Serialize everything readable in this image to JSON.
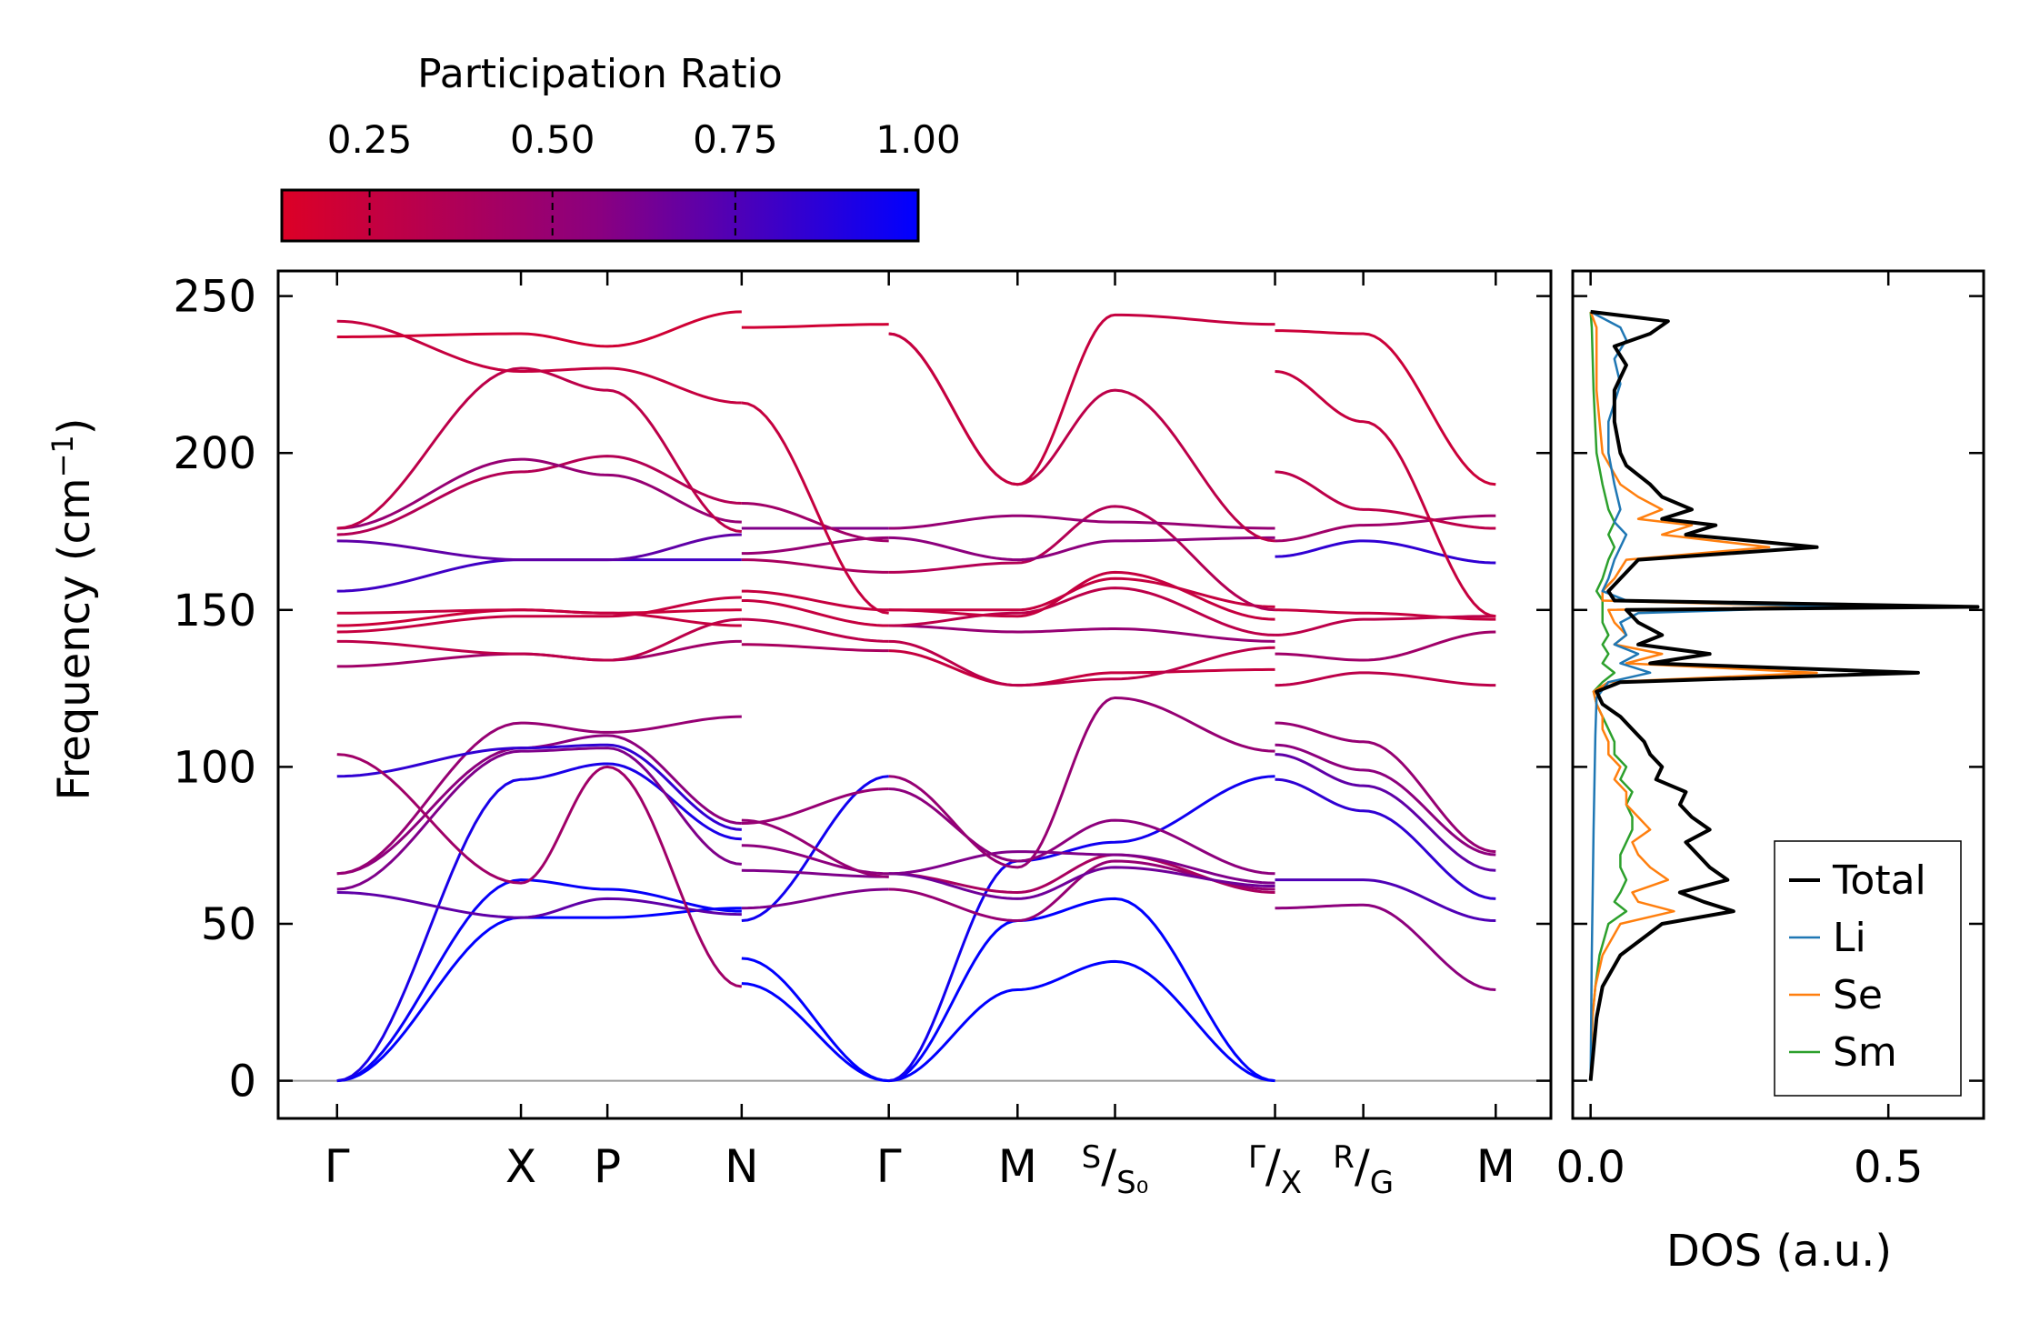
{
  "chart_data": [
    {
      "type": "line",
      "name": "phonon_dispersion",
      "ylabel": "Frequency (cm⁻¹)",
      "ylim": [
        -12,
        258
      ],
      "yticks": [
        0,
        50,
        100,
        150,
        200,
        250
      ],
      "ytick_labels": [
        "0",
        "50",
        "100",
        "150",
        "200",
        "250"
      ],
      "high_symmetry_points": [
        {
          "label": "Γ",
          "pos": 0.0
        },
        {
          "label": "X",
          "pos": 1.0
        },
        {
          "label": "P",
          "pos": 1.47
        },
        {
          "label": "N",
          "pos": 2.2
        },
        {
          "label": "Γ",
          "pos": 3.0
        },
        {
          "label": "M",
          "pos": 3.7
        },
        {
          "label": "S/S₀",
          "pos": 4.23,
          "sup": "S",
          "sub": "S₀"
        },
        {
          "label": "Γ/X",
          "pos": 5.1,
          "sup": "Γ",
          "sub": "X"
        },
        {
          "label": "R/G",
          "pos": 5.58,
          "sup": "R",
          "sub": "G"
        },
        {
          "label": "M",
          "pos": 6.3
        }
      ],
      "x_range": [
        -0.32,
        6.6
      ],
      "segments": [
        {
          "x0": 0.0,
          "x1": 2.2,
          "kpoints": [
            0.0,
            1.0,
            1.47,
            2.2
          ]
        },
        {
          "x0": 2.2,
          "x1": 3.0,
          "kpoints": [
            2.2,
            3.0
          ]
        },
        {
          "x0": 3.0,
          "x1": 5.1,
          "kpoints": [
            3.0,
            3.7,
            4.23,
            5.1
          ]
        },
        {
          "x0": 5.1,
          "x1": 6.3,
          "kpoints": [
            5.1,
            5.58,
            6.3
          ]
        }
      ],
      "bands_segment1": [
        {
          "y": [
            0,
            52,
            52,
            55
          ],
          "pr": 1.0
        },
        {
          "y": [
            0,
            64,
            61,
            54
          ],
          "pr": 0.98
        },
        {
          "y": [
            0,
            96,
            101,
            77
          ],
          "pr": 0.92
        },
        {
          "y": [
            60,
            52,
            58,
            53
          ],
          "pr": 0.7
        },
        {
          "y": [
            61,
            105,
            106,
            69
          ],
          "pr": 0.6
        },
        {
          "y": [
            66,
            106,
            110,
            82
          ],
          "pr": 0.55
        },
        {
          "y": [
            66,
            114,
            111,
            116
          ],
          "pr": 0.5
        },
        {
          "y": [
            97,
            106,
            107,
            80
          ],
          "pr": 0.85
        },
        {
          "y": [
            104,
            63,
            100,
            30
          ],
          "pr": 0.45
        },
        {
          "y": [
            132,
            136,
            134,
            140
          ],
          "pr": 0.45
        },
        {
          "y": [
            140,
            136,
            134,
            147
          ],
          "pr": 0.3
        },
        {
          "y": [
            143,
            148,
            148,
            154
          ],
          "pr": 0.25
        },
        {
          "y": [
            145,
            150,
            149,
            150
          ],
          "pr": 0.22
        },
        {
          "y": [
            149,
            150,
            149,
            145
          ],
          "pr": 0.25
        },
        {
          "y": [
            156,
            166,
            166,
            166
          ],
          "pr": 0.8
        },
        {
          "y": [
            172,
            166,
            166,
            174
          ],
          "pr": 0.7
        },
        {
          "y": [
            174,
            194,
            199,
            184
          ],
          "pr": 0.35
        },
        {
          "y": [
            176,
            198,
            193,
            178
          ],
          "pr": 0.5
        },
        {
          "y": [
            176,
            227,
            220,
            175
          ],
          "pr": 0.3
        },
        {
          "y": [
            242,
            226,
            227,
            216
          ],
          "pr": 0.25
        },
        {
          "y": [
            237,
            238,
            234,
            245
          ],
          "pr": 0.2
        }
      ],
      "bands_segment2": [
        {
          "y": [
            31,
            0
          ],
          "pr": 1.0
        },
        {
          "y": [
            39,
            0
          ],
          "pr": 1.0
        },
        {
          "y": [
            51,
            97
          ],
          "pr": 0.95
        },
        {
          "y": [
            55,
            61
          ],
          "pr": 0.6
        },
        {
          "y": [
            67,
            65
          ],
          "pr": 0.6
        },
        {
          "y": [
            75,
            66
          ],
          "pr": 0.55
        },
        {
          "y": [
            82,
            93
          ],
          "pr": 0.5
        },
        {
          "y": [
            83,
            65
          ],
          "pr": 0.5
        },
        {
          "y": [
            139,
            137
          ],
          "pr": 0.4
        },
        {
          "y": [
            147,
            140
          ],
          "pr": 0.3
        },
        {
          "y": [
            153,
            145
          ],
          "pr": 0.25
        },
        {
          "y": [
            156,
            150
          ],
          "pr": 0.25
        },
        {
          "y": [
            166,
            162
          ],
          "pr": 0.4
        },
        {
          "y": [
            168,
            173
          ],
          "pr": 0.5
        },
        {
          "y": [
            176,
            176
          ],
          "pr": 0.6
        },
        {
          "y": [
            184,
            172
          ],
          "pr": 0.45
        },
        {
          "y": [
            216,
            149
          ],
          "pr": 0.25
        },
        {
          "y": [
            240,
            241
          ],
          "pr": 0.2
        }
      ],
      "bands_segment3": [
        {
          "y": [
            0,
            29,
            38,
            0
          ],
          "pr": 1.0
        },
        {
          "y": [
            0,
            51,
            58,
            0
          ],
          "pr": 1.0
        },
        {
          "y": [
            0,
            70,
            76,
            97
          ],
          "pr": 0.95
        },
        {
          "y": [
            61,
            51,
            70,
            61
          ],
          "pr": 0.5
        },
        {
          "y": [
            66,
            60,
            72,
            60
          ],
          "pr": 0.4
        },
        {
          "y": [
            66,
            58,
            68,
            62
          ],
          "pr": 0.65
        },
        {
          "y": [
            66,
            73,
            72,
            63
          ],
          "pr": 0.6
        },
        {
          "y": [
            93,
            70,
            83,
            66
          ],
          "pr": 0.55
        },
        {
          "y": [
            97,
            68,
            122,
            105
          ],
          "pr": 0.5
        },
        {
          "y": [
            137,
            126,
            130,
            131
          ],
          "pr": 0.25
        },
        {
          "y": [
            140,
            126,
            128,
            138
          ],
          "pr": 0.3
        },
        {
          "y": [
            145,
            143,
            144,
            140
          ],
          "pr": 0.5
        },
        {
          "y": [
            145,
            149,
            157,
            142
          ],
          "pr": 0.3
        },
        {
          "y": [
            150,
            148,
            162,
            147
          ],
          "pr": 0.25
        },
        {
          "y": [
            150,
            150,
            160,
            151
          ],
          "pr": 0.25
        },
        {
          "y": [
            162,
            165,
            183,
            150
          ],
          "pr": 0.35
        },
        {
          "y": [
            173,
            166,
            172,
            173
          ],
          "pr": 0.55
        },
        {
          "y": [
            176,
            180,
            178,
            176
          ],
          "pr": 0.5
        },
        {
          "y": [
            238,
            190,
            220,
            172
          ],
          "pr": 0.3
        },
        {
          "y": [
            238,
            190,
            244,
            241
          ],
          "pr": 0.25
        }
      ],
      "bands_segment4": [
        {
          "y": [
            55,
            56,
            29
          ],
          "pr": 0.55
        },
        {
          "y": [
            64,
            64,
            51
          ],
          "pr": 0.75
        },
        {
          "y": [
            96,
            86,
            58
          ],
          "pr": 0.85
        },
        {
          "y": [
            104,
            94,
            67
          ],
          "pr": 0.7
        },
        {
          "y": [
            107,
            99,
            72
          ],
          "pr": 0.55
        },
        {
          "y": [
            114,
            108,
            73
          ],
          "pr": 0.5
        },
        {
          "y": [
            126,
            130,
            126
          ],
          "pr": 0.3
        },
        {
          "y": [
            136,
            134,
            143
          ],
          "pr": 0.45
        },
        {
          "y": [
            142,
            147,
            148
          ],
          "pr": 0.3
        },
        {
          "y": [
            150,
            149,
            147
          ],
          "pr": 0.25
        },
        {
          "y": [
            167,
            172,
            165
          ],
          "pr": 0.85
        },
        {
          "y": [
            172,
            177,
            180
          ],
          "pr": 0.45
        },
        {
          "y": [
            194,
            182,
            176
          ],
          "pr": 0.3
        },
        {
          "y": [
            226,
            210,
            148
          ],
          "pr": 0.25
        },
        {
          "y": [
            239,
            238,
            190
          ],
          "pr": 0.22
        }
      ]
    },
    {
      "type": "line",
      "name": "dos",
      "xlabel": "DOS (a.u.)",
      "xlim": [
        -0.03,
        0.66
      ],
      "xticks": [
        0.0,
        0.5
      ],
      "xtick_labels": [
        "0.0",
        "0.5"
      ],
      "ylim": [
        -12,
        258
      ],
      "legend": {
        "position": "bottom-right",
        "entries": [
          "Total",
          "Li",
          "Se",
          "Sm"
        ]
      },
      "series": [
        {
          "name": "Total",
          "color": "#000000",
          "y": [
            0,
            10,
            20,
            30,
            40,
            50,
            54,
            57,
            60,
            64,
            68,
            72,
            76,
            80,
            84,
            88,
            92,
            96,
            100,
            104,
            108,
            112,
            116,
            120,
            124,
            127,
            130,
            133,
            136,
            139,
            142,
            146,
            150,
            151,
            153,
            156,
            160,
            166,
            170,
            174,
            177,
            179,
            182,
            186,
            190,
            196,
            200,
            210,
            220,
            228,
            234,
            238,
            242,
            245
          ],
          "v": [
            0.0,
            0.005,
            0.01,
            0.02,
            0.05,
            0.12,
            0.24,
            0.19,
            0.15,
            0.23,
            0.2,
            0.18,
            0.16,
            0.2,
            0.17,
            0.15,
            0.16,
            0.11,
            0.12,
            0.1,
            0.09,
            0.07,
            0.05,
            0.02,
            0.01,
            0.05,
            0.55,
            0.1,
            0.2,
            0.08,
            0.12,
            0.08,
            0.06,
            0.65,
            0.04,
            0.03,
            0.05,
            0.08,
            0.38,
            0.16,
            0.21,
            0.12,
            0.17,
            0.12,
            0.1,
            0.06,
            0.05,
            0.04,
            0.04,
            0.06,
            0.04,
            0.1,
            0.13,
            0.0
          ]
        },
        {
          "name": "Li",
          "color": "#1f77b4",
          "y": [
            0,
            40,
            80,
            110,
            122,
            127,
            130,
            133,
            136,
            139,
            142,
            146,
            149,
            151,
            153,
            156,
            160,
            166,
            170,
            174,
            178,
            182,
            190,
            200,
            210,
            222,
            230,
            236,
            240,
            245
          ],
          "v": [
            0.0,
            0.002,
            0.005,
            0.008,
            0.01,
            0.03,
            0.1,
            0.05,
            0.08,
            0.04,
            0.06,
            0.05,
            0.08,
            0.42,
            0.06,
            0.02,
            0.03,
            0.04,
            0.05,
            0.06,
            0.04,
            0.05,
            0.04,
            0.03,
            0.03,
            0.05,
            0.04,
            0.06,
            0.05,
            0.0
          ]
        },
        {
          "name": "Se",
          "color": "#ff7f0e",
          "y": [
            0,
            20,
            30,
            40,
            50,
            54,
            57,
            60,
            64,
            68,
            72,
            76,
            80,
            84,
            88,
            92,
            96,
            100,
            104,
            108,
            112,
            116,
            120,
            124,
            127,
            130,
            133,
            136,
            139,
            142,
            146,
            150,
            151,
            153,
            156,
            160,
            166,
            170,
            174,
            177,
            179,
            182,
            186,
            190,
            200,
            220,
            240,
            245
          ],
          "v": [
            0.0,
            0.003,
            0.008,
            0.02,
            0.05,
            0.14,
            0.08,
            0.07,
            0.13,
            0.1,
            0.08,
            0.07,
            0.1,
            0.08,
            0.06,
            0.06,
            0.04,
            0.05,
            0.03,
            0.03,
            0.02,
            0.02,
            0.01,
            0.005,
            0.03,
            0.38,
            0.06,
            0.12,
            0.04,
            0.06,
            0.04,
            0.03,
            0.4,
            0.02,
            0.02,
            0.04,
            0.06,
            0.3,
            0.12,
            0.17,
            0.08,
            0.12,
            0.08,
            0.05,
            0.02,
            0.01,
            0.01,
            0.0
          ]
        },
        {
          "name": "Sm",
          "color": "#2ca02c",
          "y": [
            0,
            20,
            30,
            40,
            50,
            54,
            57,
            60,
            64,
            68,
            72,
            76,
            80,
            84,
            88,
            92,
            96,
            100,
            104,
            108,
            112,
            116,
            120,
            124,
            127,
            130,
            133,
            136,
            139,
            142,
            146,
            150,
            153,
            156,
            160,
            166,
            170,
            174,
            178,
            182,
            190,
            200,
            220,
            240,
            245
          ],
          "v": [
            0.0,
            0.003,
            0.008,
            0.015,
            0.03,
            0.06,
            0.04,
            0.05,
            0.06,
            0.05,
            0.05,
            0.06,
            0.07,
            0.07,
            0.06,
            0.07,
            0.05,
            0.06,
            0.04,
            0.04,
            0.03,
            0.02,
            0.01,
            0.005,
            0.02,
            0.04,
            0.02,
            0.03,
            0.02,
            0.03,
            0.02,
            0.02,
            0.02,
            0.01,
            0.02,
            0.03,
            0.04,
            0.03,
            0.04,
            0.03,
            0.02,
            0.01,
            0.005,
            0.002,
            0.0
          ]
        }
      ]
    }
  ],
  "colorbar": {
    "title": "Participation Ratio",
    "range": [
      0.13,
      1.0
    ],
    "ticks": [
      0.25,
      0.5,
      0.75,
      1.0
    ],
    "tick_labels": [
      "0.25",
      "0.50",
      "0.75",
      "1.00"
    ],
    "low_color": "#dc0026",
    "high_color": "#0000ff"
  }
}
